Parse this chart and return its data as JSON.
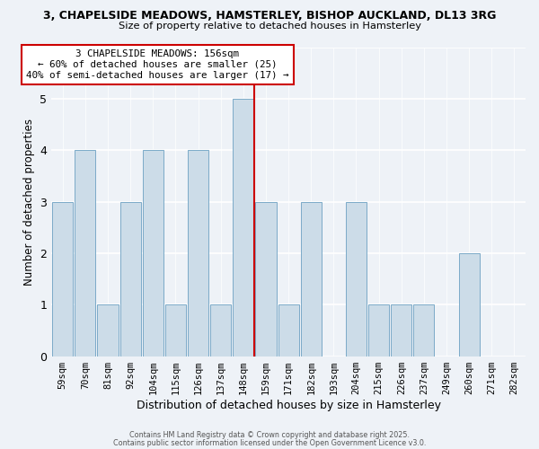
{
  "title_line1": "3, CHAPELSIDE MEADOWS, HAMSTERLEY, BISHOP AUCKLAND, DL13 3RG",
  "title_line2": "Size of property relative to detached houses in Hamsterley",
  "xlabel": "Distribution of detached houses by size in Hamsterley",
  "ylabel": "Number of detached properties",
  "bar_labels": [
    "59sqm",
    "70sqm",
    "81sqm",
    "92sqm",
    "104sqm",
    "115sqm",
    "126sqm",
    "137sqm",
    "148sqm",
    "159sqm",
    "171sqm",
    "182sqm",
    "193sqm",
    "204sqm",
    "215sqm",
    "226sqm",
    "237sqm",
    "249sqm",
    "260sqm",
    "271sqm",
    "282sqm"
  ],
  "bar_values": [
    3,
    4,
    1,
    3,
    4,
    1,
    4,
    1,
    5,
    3,
    1,
    3,
    0,
    3,
    1,
    1,
    1,
    0,
    2,
    0,
    0
  ],
  "bar_color": "#ccdce8",
  "bar_edgecolor": "#7baac8",
  "reference_line_idx": 8,
  "reference_line_color": "#cc0000",
  "annotation_text": "3 CHAPELSIDE MEADOWS: 156sqm\n← 60% of detached houses are smaller (25)\n40% of semi-detached houses are larger (17) →",
  "annotation_box_color": "#ffffff",
  "annotation_box_edgecolor": "#cc0000",
  "ylim": [
    0,
    6
  ],
  "yticks": [
    0,
    1,
    2,
    3,
    4,
    5,
    6
  ],
  "background_color": "#eef2f7",
  "footnote1": "Contains HM Land Registry data © Crown copyright and database right 2025.",
  "footnote2": "Contains public sector information licensed under the Open Government Licence v3.0."
}
